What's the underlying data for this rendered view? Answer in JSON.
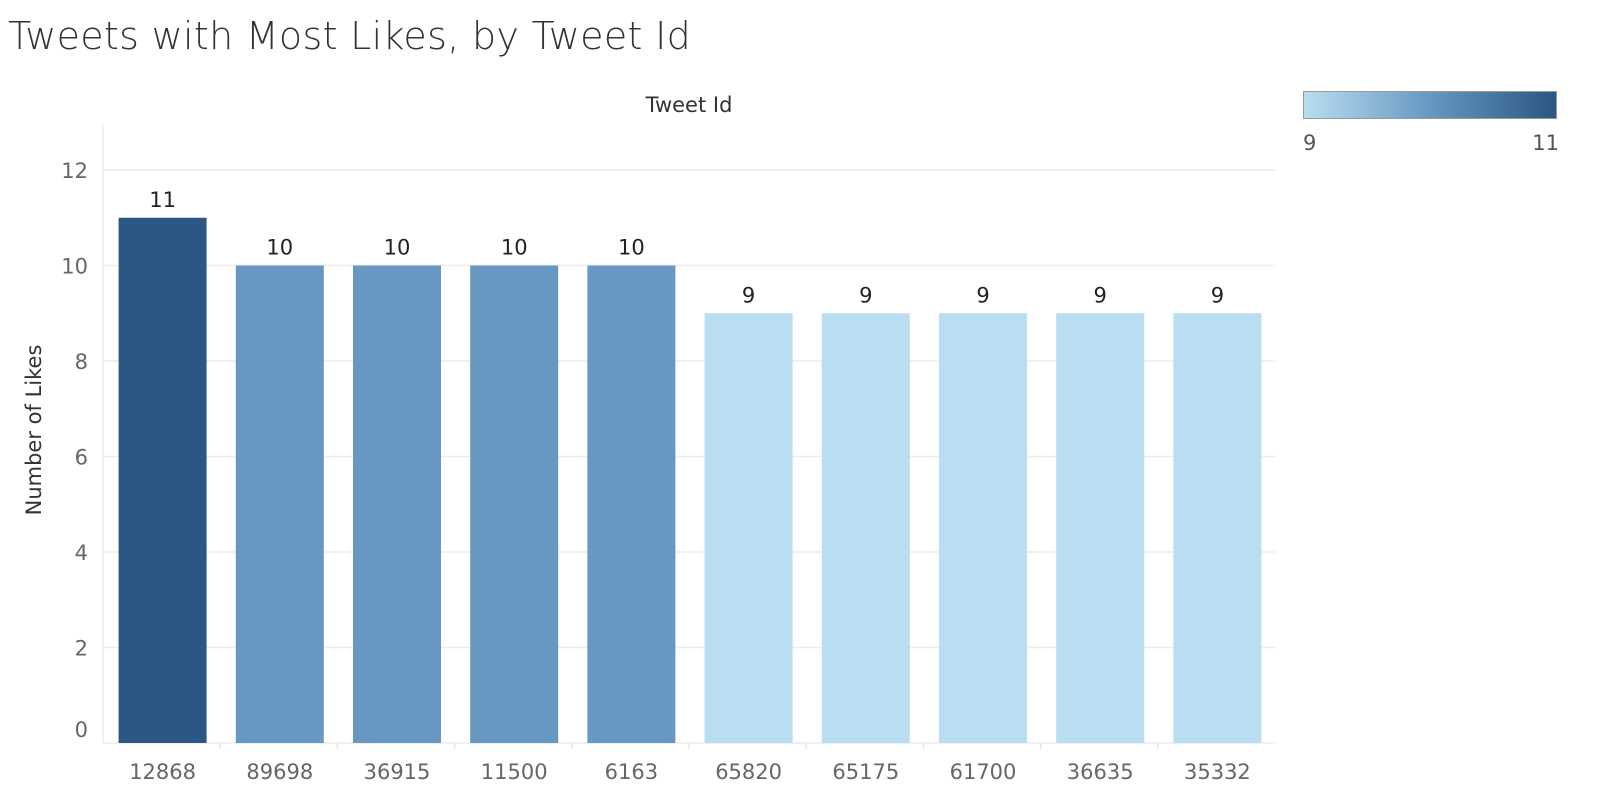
{
  "chart_data": {
    "type": "bar",
    "title": "Tweets with Most Likes, by Tweet Id",
    "xlabel": "Tweet Id",
    "ylabel": "Number of Likes",
    "categories": [
      "12868",
      "89698",
      "36915",
      "11500",
      "6163",
      "65820",
      "65175",
      "61700",
      "36635",
      "35332"
    ],
    "values": [
      11,
      10,
      10,
      10,
      10,
      9,
      9,
      9,
      9,
      9
    ],
    "ylim": [
      0,
      13
    ],
    "yticks": [
      0,
      2,
      4,
      6,
      8,
      10,
      12
    ],
    "grid": true,
    "color_legend": {
      "placement": "top-right",
      "min_label": "9",
      "max_label": "11",
      "min_color": "#b9ddf1",
      "mid_color": "#6798c1",
      "max_color": "#2a5783"
    }
  }
}
